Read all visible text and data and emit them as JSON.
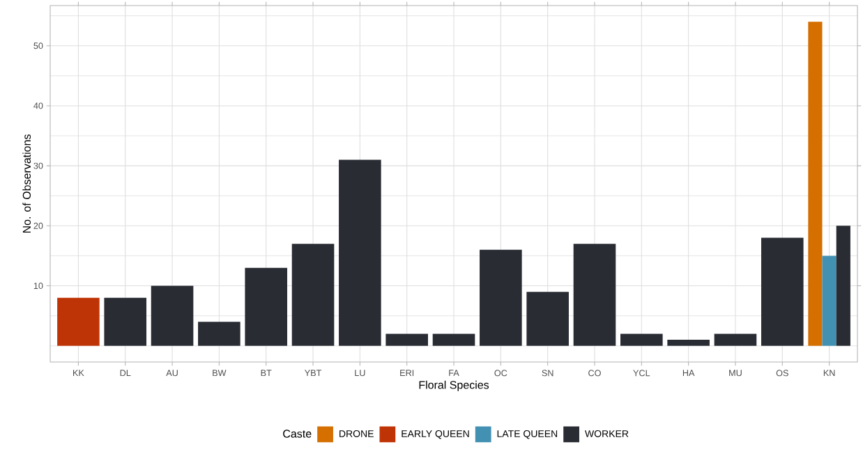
{
  "chart_data": {
    "type": "bar",
    "xlabel": "Floral Species",
    "ylabel": "No. of Observations",
    "legend_title": "Caste",
    "categories": [
      "KK",
      "DL",
      "AU",
      "BW",
      "BT",
      "YBT",
      "LU",
      "ERI",
      "FA",
      "OC",
      "SN",
      "CO",
      "YCL",
      "HA",
      "MU",
      "OS",
      "KN"
    ],
    "series": [
      {
        "name": "DRONE",
        "color": "#d46f00",
        "values": [
          null,
          null,
          null,
          null,
          null,
          null,
          null,
          null,
          null,
          null,
          null,
          null,
          null,
          null,
          null,
          null,
          54
        ]
      },
      {
        "name": "EARLY QUEEN",
        "color": "#bf3406",
        "values": [
          8,
          null,
          null,
          null,
          null,
          null,
          null,
          null,
          null,
          null,
          null,
          null,
          null,
          null,
          null,
          null,
          null
        ]
      },
      {
        "name": "LATE QUEEN",
        "color": "#4291b3",
        "values": [
          null,
          null,
          null,
          null,
          null,
          null,
          null,
          null,
          null,
          null,
          null,
          null,
          null,
          null,
          null,
          null,
          15
        ]
      },
      {
        "name": "WORKER",
        "color": "#292c33",
        "values": [
          null,
          8,
          10,
          4,
          13,
          17,
          31,
          2,
          2,
          16,
          9,
          17,
          2,
          1,
          2,
          18,
          20
        ]
      }
    ],
    "ylim": [
      -2.7,
      56.7
    ],
    "yticks": [
      10,
      20,
      30,
      40,
      50
    ],
    "grid": true,
    "legend": "bottom"
  }
}
